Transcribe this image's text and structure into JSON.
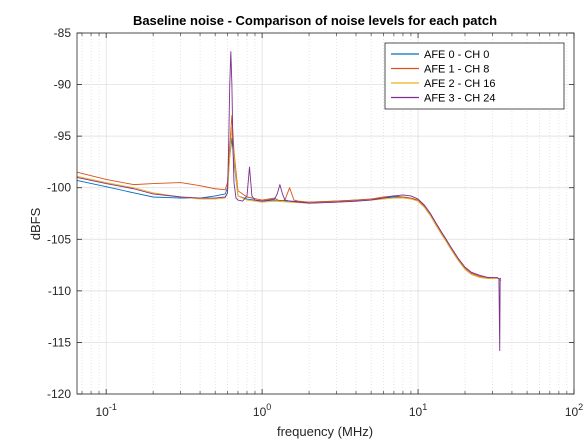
{
  "chart_data": {
    "type": "line",
    "title": "Baseline noise - Comparison of noise levels for each patch",
    "xlabel": "frequency (MHz)",
    "ylabel": "dBFS",
    "xscale": "log",
    "xlim": [
      0.065,
      100
    ],
    "ylim": [
      -120,
      -85
    ],
    "grid": true,
    "legend_position": "top-right",
    "y_ticks": [
      -85,
      -90,
      -95,
      -100,
      -105,
      -110,
      -115,
      -120
    ],
    "x_ticks": [
      {
        "value": 0.1,
        "base": "10",
        "exp": "-1"
      },
      {
        "value": 1,
        "base": "10",
        "exp": "0"
      },
      {
        "value": 10,
        "base": "10",
        "exp": "1"
      },
      {
        "value": 100,
        "base": "10",
        "exp": "2"
      }
    ],
    "series": [
      {
        "name": "AFE 0 - CH 0",
        "color": "#0072BD",
        "x": [
          0.065,
          0.1,
          0.15,
          0.2,
          0.3,
          0.4,
          0.5,
          0.58,
          0.6,
          0.62,
          0.64,
          0.66,
          0.7,
          0.8,
          1.0,
          1.2,
          1.5,
          2,
          3,
          4,
          5,
          6,
          7,
          8,
          9,
          10,
          11,
          12,
          13,
          14,
          15,
          16,
          18,
          20,
          22,
          25,
          28,
          30,
          32,
          33,
          33.5,
          34
        ],
        "y": [
          -99.3,
          -99.9,
          -100.5,
          -100.9,
          -101.0,
          -101.0,
          -100.8,
          -100.6,
          -100.0,
          -97.0,
          -95.2,
          -97.5,
          -100.8,
          -101.1,
          -101.3,
          -101.2,
          -101.3,
          -101.4,
          -101.3,
          -101.2,
          -101.1,
          -101.0,
          -100.9,
          -100.9,
          -101.0,
          -101.3,
          -101.9,
          -102.7,
          -103.6,
          -104.4,
          -105.1,
          -105.8,
          -107.0,
          -107.9,
          -108.4,
          -108.7,
          -108.8,
          -108.8,
          -108.8,
          -108.8,
          -108.9,
          -109.0
        ]
      },
      {
        "name": "AFE 1 - CH 8",
        "color": "#D95319",
        "x": [
          0.065,
          0.1,
          0.15,
          0.2,
          0.3,
          0.4,
          0.5,
          0.58,
          0.6,
          0.62,
          0.64,
          0.66,
          0.7,
          0.8,
          1.0,
          1.2,
          1.3,
          1.4,
          1.5,
          1.6,
          1.7,
          2,
          3,
          4,
          5,
          6,
          7,
          8,
          9,
          10,
          11,
          12,
          13,
          14,
          15,
          16,
          18,
          20,
          22,
          25,
          28,
          30,
          32,
          33,
          33.5,
          34
        ],
        "y": [
          -98.5,
          -99.2,
          -99.7,
          -99.6,
          -99.5,
          -99.8,
          -100.1,
          -100.2,
          -99.5,
          -96.0,
          -93.0,
          -96.5,
          -100.3,
          -100.9,
          -101.2,
          -101.0,
          -101.3,
          -101.2,
          -100.0,
          -101.2,
          -101.3,
          -101.4,
          -101.3,
          -101.2,
          -101.1,
          -100.9,
          -100.8,
          -100.9,
          -101.0,
          -101.2,
          -101.8,
          -102.6,
          -103.5,
          -104.3,
          -105.0,
          -105.7,
          -106.9,
          -107.8,
          -108.3,
          -108.6,
          -108.7,
          -108.8,
          -108.8,
          -108.8,
          -108.9,
          -109.0
        ]
      },
      {
        "name": "AFE 2 - CH 16",
        "color": "#EDB120",
        "x": [
          0.065,
          0.1,
          0.15,
          0.2,
          0.3,
          0.4,
          0.5,
          0.58,
          0.6,
          0.62,
          0.64,
          0.66,
          0.7,
          0.8,
          1.0,
          1.2,
          1.5,
          2,
          3,
          4,
          5,
          6,
          7,
          8,
          9,
          10,
          11,
          12,
          13,
          14,
          15,
          16,
          18,
          20,
          22,
          25,
          28,
          30,
          32,
          33,
          33.5,
          34
        ],
        "y": [
          -98.9,
          -99.5,
          -100.0,
          -100.5,
          -100.9,
          -101.1,
          -101.1,
          -101.0,
          -100.5,
          -97.0,
          -94.2,
          -97.0,
          -100.8,
          -101.2,
          -101.4,
          -101.3,
          -101.4,
          -101.5,
          -101.4,
          -101.3,
          -101.2,
          -101.1,
          -101.0,
          -101.0,
          -101.1,
          -101.3,
          -101.9,
          -102.7,
          -103.6,
          -104.4,
          -105.1,
          -105.8,
          -107.0,
          -107.9,
          -108.4,
          -108.7,
          -108.8,
          -108.8,
          -108.8,
          -108.8,
          -108.9,
          -109.0
        ]
      },
      {
        "name": "AFE 3 - CH 24",
        "color": "#7E2F8E",
        "x": [
          0.065,
          0.1,
          0.15,
          0.2,
          0.3,
          0.4,
          0.5,
          0.58,
          0.6,
          0.61,
          0.62,
          0.63,
          0.64,
          0.65,
          0.66,
          0.68,
          0.7,
          0.75,
          0.8,
          0.83,
          0.86,
          0.9,
          1.0,
          1.2,
          1.25,
          1.3,
          1.35,
          1.4,
          1.5,
          2,
          3,
          4,
          5,
          6,
          7,
          8,
          9,
          10,
          11,
          12,
          13,
          14,
          15,
          16,
          18,
          20,
          22,
          25,
          28,
          30,
          32,
          33,
          33.4,
          33.6,
          34
        ],
        "y": [
          -99.0,
          -99.6,
          -100.1,
          -100.6,
          -100.9,
          -101.0,
          -101.0,
          -100.9,
          -100.5,
          -96.0,
          -90.0,
          -86.8,
          -90.0,
          -96.0,
          -99.5,
          -101.0,
          -101.2,
          -101.3,
          -100.8,
          -98.0,
          -100.8,
          -101.2,
          -101.3,
          -101.1,
          -100.6,
          -99.7,
          -100.6,
          -101.2,
          -101.3,
          -101.5,
          -101.4,
          -101.3,
          -101.2,
          -101.0,
          -100.8,
          -100.7,
          -100.8,
          -101.1,
          -101.7,
          -102.5,
          -103.4,
          -104.2,
          -104.9,
          -105.6,
          -106.8,
          -107.7,
          -108.2,
          -108.5,
          -108.7,
          -108.7,
          -108.7,
          -108.8,
          -115.8,
          -108.8,
          -108.8
        ]
      }
    ]
  }
}
